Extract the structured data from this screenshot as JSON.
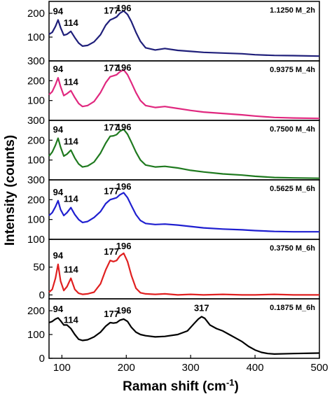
{
  "chart_data": {
    "type": "line",
    "layout": "stacked-panels",
    "xlabel_main": "Raman shift (cm",
    "xlabel_sup": "-1",
    "xlabel_close": ")",
    "ylabel": "Intensity (counts)",
    "xlim": [
      80,
      500
    ],
    "xticks": [
      100,
      200,
      300,
      400,
      500
    ],
    "grid": false,
    "panels": [
      {
        "sample": "1.1250 M_2h",
        "color": "#1f1f7a",
        "ylim": [
          0,
          250
        ],
        "yticks": [
          100,
          200
        ],
        "peaks": [
          {
            "label": "94",
            "x": 94,
            "y": 172
          },
          {
            "label": "114",
            "x": 114,
            "y": 124
          },
          {
            "label": "177",
            "x": 177,
            "y": 175
          },
          {
            "label": "196",
            "x": 196,
            "y": 210
          }
        ],
        "x": [
          80,
          85,
          90,
          94,
          98,
          103,
          108,
          114,
          120,
          126,
          132,
          140,
          150,
          160,
          168,
          175,
          180,
          185,
          190,
          196,
          202,
          208,
          215,
          222,
          230,
          245,
          260,
          280,
          300,
          320,
          350,
          380,
          400,
          430,
          460,
          500
        ],
        "y": [
          112,
          120,
          145,
          172,
          140,
          108,
          112,
          124,
          98,
          75,
          62,
          65,
          80,
          110,
          150,
          172,
          178,
          185,
          200,
          210,
          195,
          165,
          120,
          82,
          55,
          46,
          52,
          44,
          40,
          36,
          33,
          30,
          26,
          23,
          22,
          20
        ]
      },
      {
        "sample": "0.9375 M_4h",
        "color": "#e0287f",
        "ylim": [
          0,
          300
        ],
        "yticks": [
          100,
          200,
          300
        ],
        "peaks": [
          {
            "label": "94",
            "x": 94,
            "y": 215
          },
          {
            "label": "114",
            "x": 114,
            "y": 150
          },
          {
            "label": "177",
            "x": 177,
            "y": 220
          },
          {
            "label": "196",
            "x": 196,
            "y": 255
          }
        ],
        "x": [
          80,
          85,
          90,
          94,
          98,
          103,
          108,
          114,
          120,
          126,
          132,
          140,
          150,
          160,
          168,
          175,
          180,
          185,
          190,
          196,
          202,
          208,
          215,
          222,
          230,
          245,
          260,
          280,
          300,
          320,
          350,
          380,
          400,
          430,
          460,
          500
        ],
        "y": [
          130,
          145,
          180,
          215,
          170,
          125,
          135,
          150,
          115,
          85,
          70,
          75,
          95,
          140,
          190,
          220,
          225,
          230,
          245,
          255,
          230,
          190,
          140,
          100,
          75,
          65,
          70,
          60,
          50,
          42,
          35,
          28,
          22,
          15,
          12,
          10
        ]
      },
      {
        "sample": "0.7500 M_4h",
        "color": "#1f7a1f",
        "ylim": [
          0,
          300
        ],
        "yticks": [
          100,
          200,
          300
        ],
        "peaks": [
          {
            "label": "94",
            "x": 94,
            "y": 210
          },
          {
            "label": "114",
            "x": 114,
            "y": 150
          },
          {
            "label": "177",
            "x": 177,
            "y": 220
          },
          {
            "label": "196",
            "x": 196,
            "y": 255
          }
        ],
        "x": [
          80,
          85,
          90,
          94,
          98,
          103,
          108,
          114,
          120,
          126,
          132,
          140,
          150,
          160,
          168,
          175,
          180,
          185,
          190,
          196,
          202,
          208,
          215,
          222,
          230,
          245,
          260,
          280,
          300,
          320,
          350,
          380,
          400,
          430,
          460,
          500
        ],
        "y": [
          120,
          140,
          175,
          210,
          165,
          120,
          130,
          150,
          110,
          80,
          65,
          70,
          90,
          135,
          185,
          220,
          222,
          228,
          245,
          255,
          230,
          190,
          140,
          100,
          75,
          65,
          68,
          60,
          48,
          40,
          30,
          24,
          18,
          12,
          10,
          8
        ]
      },
      {
        "sample": "0.5625 M_6h",
        "color": "#1f1fd0",
        "ylim": [
          0,
          300
        ],
        "yticks": [
          100,
          200,
          300
        ],
        "peaks": [
          {
            "label": "94",
            "x": 94,
            "y": 195
          },
          {
            "label": "114",
            "x": 114,
            "y": 160
          },
          {
            "label": "177",
            "x": 177,
            "y": 200
          },
          {
            "label": "196",
            "x": 196,
            "y": 235
          }
        ],
        "x": [
          80,
          85,
          90,
          94,
          98,
          103,
          108,
          114,
          120,
          126,
          132,
          140,
          150,
          160,
          168,
          175,
          180,
          185,
          190,
          196,
          202,
          208,
          215,
          222,
          230,
          245,
          260,
          280,
          300,
          320,
          350,
          380,
          400,
          430,
          460,
          500
        ],
        "y": [
          120,
          135,
          165,
          195,
          150,
          120,
          135,
          160,
          125,
          100,
          85,
          90,
          110,
          140,
          180,
          200,
          205,
          210,
          225,
          235,
          210,
          170,
          125,
          95,
          80,
          75,
          77,
          72,
          65,
          58,
          52,
          48,
          44,
          40,
          38,
          38
        ]
      },
      {
        "sample": "0.3750 M_6h",
        "color": "#e02020",
        "ylim": [
          -7,
          100
        ],
        "yticks": [
          0,
          50,
          100
        ],
        "peaks": [
          {
            "label": "94",
            "x": 94,
            "y": 55
          },
          {
            "label": "114",
            "x": 114,
            "y": 30
          },
          {
            "label": "177",
            "x": 177,
            "y": 62
          },
          {
            "label": "196",
            "x": 196,
            "y": 75
          }
        ],
        "x": [
          80,
          85,
          90,
          94,
          98,
          103,
          108,
          114,
          120,
          126,
          132,
          140,
          150,
          160,
          168,
          175,
          180,
          185,
          190,
          196,
          202,
          208,
          215,
          222,
          230,
          245,
          260,
          280,
          300,
          320,
          350,
          380,
          400,
          430,
          460,
          500
        ],
        "y": [
          5,
          10,
          30,
          55,
          25,
          8,
          15,
          30,
          10,
          3,
          1,
          2,
          5,
          20,
          45,
          62,
          60,
          62,
          70,
          75,
          60,
          35,
          12,
          4,
          2,
          1,
          2,
          0,
          1,
          0,
          1,
          0,
          0,
          1,
          0,
          0
        ]
      },
      {
        "sample": "0.1875 M_6h",
        "color": "#000000",
        "ylim": [
          0,
          250
        ],
        "yticks": [
          0,
          100,
          200
        ],
        "peaks": [
          {
            "label": "94",
            "x": 94,
            "y": 170
          },
          {
            "label": "114",
            "x": 114,
            "y": 125
          },
          {
            "label": "177",
            "x": 177,
            "y": 150
          },
          {
            "label": "196",
            "x": 196,
            "y": 165
          },
          {
            "label": "317",
            "x": 317,
            "y": 175
          }
        ],
        "x": [
          80,
          85,
          90,
          94,
          98,
          103,
          108,
          114,
          120,
          126,
          132,
          140,
          150,
          160,
          168,
          175,
          180,
          185,
          190,
          196,
          202,
          208,
          215,
          222,
          230,
          245,
          260,
          280,
          295,
          305,
          312,
          317,
          322,
          330,
          340,
          350,
          360,
          370,
          380,
          390,
          400,
          410,
          420,
          430,
          460,
          500
        ],
        "y": [
          150,
          155,
          165,
          170,
          158,
          140,
          140,
          125,
          100,
          80,
          75,
          78,
          90,
          110,
          135,
          150,
          148,
          150,
          160,
          165,
          155,
          130,
          110,
          100,
          95,
          90,
          92,
          100,
          115,
          145,
          165,
          175,
          168,
          140,
          125,
          115,
          100,
          85,
          70,
          50,
          35,
          25,
          20,
          18,
          20,
          22
        ]
      }
    ]
  }
}
